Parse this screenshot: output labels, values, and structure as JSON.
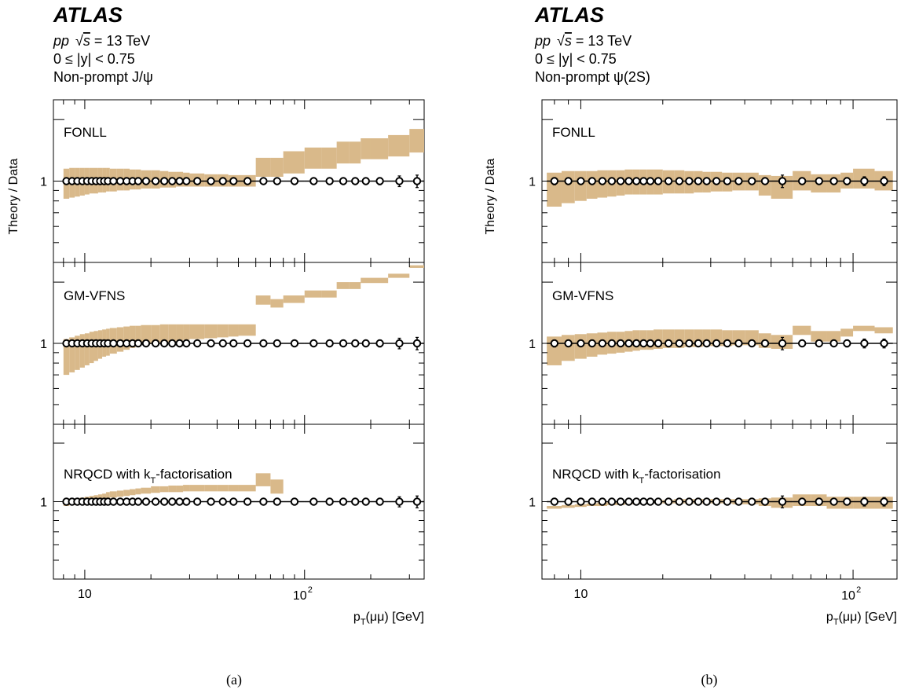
{
  "ylabel": "Theory / Data",
  "xlabel": {
    "base": "p",
    "sub": "T",
    "rest": "(μμ) [GeV]"
  },
  "yaxis": {
    "type": "log",
    "range": [
      0.4,
      2.5
    ],
    "tick_labels": [
      "1"
    ]
  },
  "xaxis": {
    "type": "log",
    "tick_labels": [
      "10",
      "10",
      "2"
    ]
  },
  "band_color": "#d9b98a",
  "marker_style": "open black circles with error bars",
  "chart_data": [
    {
      "type": "area",
      "sub_label": "(a)",
      "atlas": "ATLAS",
      "info": {
        "line1": "pp  √s = 13 TeV",
        "line1_pp": "pp",
        "line1_sqrt": "√",
        "line1_s": "s",
        "line1_rest": " = 13 TeV",
        "line2": "0 ≤ |y| < 0.75",
        "line3": "Non-prompt J/ψ"
      },
      "xlim": [
        7.2,
        350
      ],
      "ylim": [
        0.4,
        2.5
      ],
      "bins": [
        8,
        8.5,
        9,
        9.5,
        10,
        10.5,
        11,
        11.5,
        12,
        12.5,
        13,
        14,
        15,
        16,
        17,
        18,
        20,
        22,
        24,
        26,
        28,
        30,
        35,
        40,
        45,
        50,
        60,
        70,
        80,
        100,
        120,
        140,
        160,
        180,
        200,
        240,
        300,
        350
      ],
      "data": {
        "x": [
          8.25,
          8.75,
          9.25,
          9.75,
          10.25,
          10.75,
          11.25,
          11.75,
          12.25,
          12.75,
          13.5,
          14.5,
          15.5,
          16.5,
          17.5,
          19,
          21,
          23,
          25,
          27,
          29,
          32.5,
          37.5,
          42.5,
          47.5,
          55,
          65,
          75,
          90,
          110,
          130,
          150,
          170,
          190,
          220,
          270,
          325
        ],
        "y": [
          1,
          1,
          1,
          1,
          1,
          1,
          1,
          1,
          1,
          1,
          1,
          1,
          1,
          1,
          1,
          1,
          1,
          1,
          1,
          1,
          1,
          1,
          1,
          1,
          1,
          1,
          1,
          1,
          1,
          1,
          1,
          1,
          1,
          1,
          1,
          1,
          1
        ],
        "err": [
          0.005,
          0.005,
          0.005,
          0.005,
          0.005,
          0.005,
          0.005,
          0.005,
          0.005,
          0.005,
          0.005,
          0.005,
          0.005,
          0.005,
          0.005,
          0.005,
          0.005,
          0.005,
          0.005,
          0.005,
          0.005,
          0.005,
          0.005,
          0.01,
          0.015,
          0.025,
          0.012,
          0.012,
          0.015,
          0.015,
          0.02,
          0.025,
          0.03,
          0.035,
          0.04,
          0.06,
          0.07
        ]
      },
      "panels": [
        {
          "model": "FONLL",
          "low": [
            0.82,
            0.83,
            0.84,
            0.85,
            0.86,
            0.87,
            0.87,
            0.88,
            0.88,
            0.89,
            0.89,
            0.9,
            0.9,
            0.91,
            0.91,
            0.92,
            0.92,
            0.93,
            0.93,
            0.94,
            0.94,
            0.94,
            0.94,
            0.94,
            0.94,
            0.94,
            1.05,
            1.05,
            1.09,
            1.15,
            1.15,
            1.22,
            1.22,
            1.28,
            1.28,
            1.32,
            1.38
          ],
          "high": [
            1.15,
            1.16,
            1.16,
            1.16,
            1.16,
            1.16,
            1.16,
            1.16,
            1.16,
            1.16,
            1.15,
            1.15,
            1.15,
            1.14,
            1.14,
            1.13,
            1.13,
            1.12,
            1.11,
            1.11,
            1.1,
            1.09,
            1.08,
            1.08,
            1.07,
            1.07,
            1.3,
            1.3,
            1.4,
            1.46,
            1.46,
            1.56,
            1.56,
            1.62,
            1.62,
            1.68,
            1.8
          ]
        },
        {
          "model": "GM-VFNS",
          "low": [
            0.7,
            0.72,
            0.74,
            0.76,
            0.78,
            0.8,
            0.82,
            0.84,
            0.86,
            0.87,
            0.89,
            0.91,
            0.93,
            0.95,
            0.97,
            0.99,
            1.0,
            1.01,
            1.02,
            1.03,
            1.04,
            1.05,
            1.06,
            1.07,
            1.08,
            1.09,
            1.55,
            1.5,
            1.58,
            1.68,
            1.68,
            1.85,
            1.85,
            1.98,
            1.98,
            2.1,
            2.35
          ],
          "high": [
            1.05,
            1.07,
            1.09,
            1.11,
            1.12,
            1.14,
            1.15,
            1.16,
            1.17,
            1.18,
            1.19,
            1.2,
            1.21,
            1.22,
            1.22,
            1.23,
            1.23,
            1.24,
            1.24,
            1.24,
            1.24,
            1.24,
            1.24,
            1.24,
            1.24,
            1.24,
            1.72,
            1.65,
            1.72,
            1.82,
            1.82,
            2.0,
            2.0,
            2.1,
            2.1,
            2.2,
            2.42
          ]
        },
        {
          "model": "NRQCD with k_T-factorisation",
          "model_pre": "NRQCD with k",
          "model_sub": "T",
          "model_post": "-factorisation",
          "low": [
            0.95,
            0.96,
            0.97,
            0.98,
            0.99,
            1.0,
            1.01,
            1.02,
            1.03,
            1.04,
            1.05,
            1.06,
            1.07,
            1.08,
            1.09,
            1.1,
            1.11,
            1.12,
            1.12,
            1.12,
            1.13,
            1.13,
            1.13,
            1.13,
            1.13,
            1.13,
            1.2,
            1.1
          ],
          "high": [
            1.02,
            1.03,
            1.04,
            1.05,
            1.06,
            1.07,
            1.08,
            1.09,
            1.1,
            1.12,
            1.13,
            1.14,
            1.15,
            1.16,
            1.17,
            1.18,
            1.2,
            1.2,
            1.21,
            1.21,
            1.22,
            1.22,
            1.22,
            1.22,
            1.22,
            1.22,
            1.4,
            1.3
          ]
        }
      ]
    },
    {
      "type": "area",
      "sub_label": "(b)",
      "atlas": "ATLAS",
      "info": {
        "line1": "pp  √s = 13 TeV",
        "line1_pp": "pp",
        "line1_sqrt": "√",
        "line1_s": "s",
        "line1_rest": " = 13 TeV",
        "line2": "0 ≤ |y| < 0.75",
        "line3": "Non-prompt ψ(2S)"
      },
      "xlim": [
        7.2,
        145
      ],
      "ylim": [
        0.4,
        2.5
      ],
      "bins": [
        7.5,
        8.5,
        9.5,
        10.5,
        11.5,
        12.5,
        13.5,
        14.5,
        15.5,
        16.5,
        17.5,
        18.5,
        20,
        22,
        24,
        26,
        28,
        30,
        33,
        36,
        40,
        45,
        50,
        60,
        70,
        80,
        90,
        100,
        120,
        140
      ],
      "data": {
        "x": [
          8,
          9,
          10,
          11,
          12,
          13,
          14,
          15,
          16,
          17,
          18,
          19.25,
          21,
          23,
          25,
          27,
          29,
          31.5,
          34.5,
          38,
          42.5,
          47.5,
          55,
          65,
          75,
          85,
          95,
          110,
          130
        ],
        "y": [
          1,
          1,
          1,
          1,
          1,
          1,
          1,
          1,
          1,
          1,
          1,
          1,
          1,
          1,
          1,
          1,
          1,
          1,
          1,
          1,
          1,
          1,
          1,
          1,
          1,
          1,
          1,
          1,
          1
        ],
        "err": [
          0.04,
          0.01,
          0.01,
          0.01,
          0.01,
          0.01,
          0.01,
          0.01,
          0.01,
          0.01,
          0.01,
          0.01,
          0.01,
          0.01,
          0.01,
          0.01,
          0.01,
          0.01,
          0.01,
          0.012,
          0.02,
          0.03,
          0.07,
          0.035,
          0.03,
          0.035,
          0.04,
          0.05,
          0.05
        ]
      },
      "panels": [
        {
          "model": "FONLL",
          "low": [
            0.75,
            0.78,
            0.8,
            0.82,
            0.83,
            0.84,
            0.85,
            0.86,
            0.86,
            0.86,
            0.86,
            0.86,
            0.87,
            0.87,
            0.87,
            0.88,
            0.88,
            0.89,
            0.89,
            0.9,
            0.9,
            0.85,
            0.82,
            0.9,
            0.88,
            0.88,
            0.92,
            0.92,
            0.9
          ],
          "high": [
            1.1,
            1.12,
            1.12,
            1.12,
            1.13,
            1.13,
            1.13,
            1.14,
            1.14,
            1.14,
            1.14,
            1.14,
            1.13,
            1.13,
            1.12,
            1.12,
            1.11,
            1.11,
            1.1,
            1.1,
            1.1,
            1.07,
            1.06,
            1.12,
            1.08,
            1.08,
            1.1,
            1.15,
            1.12
          ]
        },
        {
          "model": "GM-VFNS",
          "low": [
            0.78,
            0.82,
            0.84,
            0.86,
            0.88,
            0.89,
            0.9,
            0.91,
            0.92,
            0.93,
            0.93,
            0.94,
            0.95,
            0.95,
            0.96,
            0.96,
            0.97,
            0.97,
            0.97,
            0.98,
            0.98,
            0.95,
            0.94,
            1.1,
            1.02,
            1.02,
            1.08,
            1.15,
            1.12
          ],
          "high": [
            1.08,
            1.1,
            1.11,
            1.12,
            1.13,
            1.14,
            1.14,
            1.15,
            1.16,
            1.16,
            1.16,
            1.17,
            1.17,
            1.17,
            1.17,
            1.17,
            1.17,
            1.17,
            1.16,
            1.16,
            1.16,
            1.12,
            1.1,
            1.22,
            1.15,
            1.15,
            1.18,
            1.22,
            1.2
          ]
        },
        {
          "model": "NRQCD with k_T-factorisation",
          "model_pre": "NRQCD with k",
          "model_sub": "T",
          "model_post": "-factorisation",
          "low": [
            0.92,
            0.93,
            0.94,
            0.95,
            0.95,
            0.96,
            0.96,
            0.97,
            0.97,
            0.97,
            0.98,
            0.98,
            0.98,
            0.98,
            0.98,
            0.98,
            0.98,
            0.98,
            0.98,
            0.97,
            0.97,
            0.95,
            0.93,
            0.95,
            0.95,
            0.92,
            0.92,
            0.92,
            0.92
          ],
          "high": [
            0.95,
            0.96,
            0.97,
            0.98,
            0.99,
            1.0,
            1.0,
            1.01,
            1.01,
            1.02,
            1.02,
            1.02,
            1.02,
            1.03,
            1.03,
            1.03,
            1.03,
            1.03,
            1.03,
            1.03,
            1.03,
            1.04,
            1.05,
            1.09,
            1.09,
            1.06,
            1.06,
            1.06,
            1.06
          ]
        }
      ]
    }
  ]
}
